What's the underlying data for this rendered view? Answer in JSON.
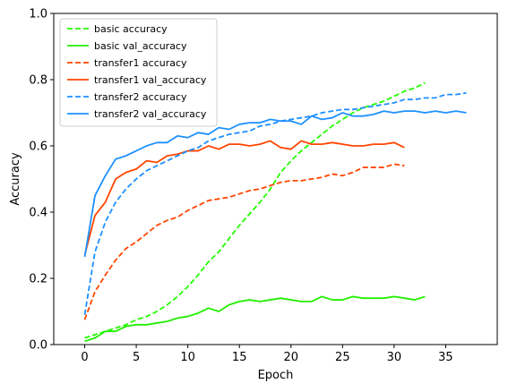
{
  "chart_data": {
    "type": "line",
    "title": "",
    "xlabel": "Epoch",
    "ylabel": "Accuracy",
    "xlim": [
      -3,
      40
    ],
    "ylim": [
      0.0,
      1.0
    ],
    "xticks": [
      0,
      5,
      10,
      15,
      20,
      25,
      30,
      35
    ],
    "xtick_labels": [
      "0",
      "5",
      "10",
      "15",
      "20",
      "25",
      "30",
      "35"
    ],
    "yticks": [
      0.0,
      0.2,
      0.4,
      0.6,
      0.8,
      1.0
    ],
    "ytick_labels": [
      "0.0",
      "0.2",
      "0.4",
      "0.6",
      "0.8",
      "1.0"
    ],
    "legend_position": "top-left",
    "series": [
      {
        "name": "basic accuracy",
        "color": "#22ff00",
        "style": "dashed",
        "x": [
          0,
          1,
          2,
          3,
          4,
          5,
          6,
          7,
          8,
          9,
          10,
          11,
          12,
          13,
          14,
          15,
          16,
          17,
          18,
          19,
          20,
          21,
          22,
          23,
          24,
          25,
          26,
          27,
          28,
          29,
          30,
          31,
          32,
          33
        ],
        "values": [
          0.02,
          0.03,
          0.04,
          0.05,
          0.06,
          0.075,
          0.085,
          0.1,
          0.12,
          0.145,
          0.175,
          0.21,
          0.25,
          0.28,
          0.32,
          0.36,
          0.395,
          0.43,
          0.47,
          0.52,
          0.555,
          0.585,
          0.61,
          0.635,
          0.66,
          0.68,
          0.7,
          0.715,
          0.725,
          0.735,
          0.75,
          0.765,
          0.775,
          0.79
        ]
      },
      {
        "name": "basic val_accuracy",
        "color": "#22ee00",
        "style": "solid",
        "x": [
          0,
          1,
          2,
          3,
          4,
          5,
          6,
          7,
          8,
          9,
          10,
          11,
          12,
          13,
          14,
          15,
          16,
          17,
          18,
          19,
          20,
          21,
          22,
          23,
          24,
          25,
          26,
          27,
          28,
          29,
          30,
          31,
          32,
          33
        ],
        "values": [
          0.01,
          0.02,
          0.04,
          0.04,
          0.055,
          0.06,
          0.06,
          0.065,
          0.07,
          0.08,
          0.085,
          0.095,
          0.11,
          0.1,
          0.12,
          0.13,
          0.135,
          0.13,
          0.135,
          0.14,
          0.135,
          0.13,
          0.13,
          0.145,
          0.135,
          0.135,
          0.145,
          0.14,
          0.14,
          0.14,
          0.145,
          0.14,
          0.135,
          0.145
        ]
      },
      {
        "name": "transfer1 accuracy",
        "color": "#ff4500",
        "style": "dashed",
        "x": [
          0,
          1,
          2,
          3,
          4,
          5,
          6,
          7,
          8,
          9,
          10,
          11,
          12,
          13,
          14,
          15,
          16,
          17,
          18,
          19,
          20,
          21,
          22,
          23,
          24,
          25,
          26,
          27,
          28,
          29,
          30,
          31
        ],
        "values": [
          0.075,
          0.16,
          0.21,
          0.255,
          0.29,
          0.31,
          0.335,
          0.36,
          0.375,
          0.385,
          0.405,
          0.42,
          0.435,
          0.44,
          0.445,
          0.455,
          0.465,
          0.47,
          0.48,
          0.49,
          0.495,
          0.495,
          0.5,
          0.505,
          0.515,
          0.51,
          0.52,
          0.535,
          0.535,
          0.535,
          0.545,
          0.54
        ]
      },
      {
        "name": "transfer1 val_accuracy",
        "color": "#ff4500",
        "style": "solid",
        "x": [
          0,
          1,
          2,
          3,
          4,
          5,
          6,
          7,
          8,
          9,
          10,
          11,
          12,
          13,
          14,
          15,
          16,
          17,
          18,
          19,
          20,
          21,
          22,
          23,
          24,
          25,
          26,
          27,
          28,
          29,
          30,
          31
        ],
        "values": [
          0.27,
          0.39,
          0.43,
          0.5,
          0.52,
          0.53,
          0.555,
          0.55,
          0.57,
          0.575,
          0.585,
          0.585,
          0.6,
          0.59,
          0.605,
          0.605,
          0.6,
          0.605,
          0.615,
          0.595,
          0.59,
          0.615,
          0.605,
          0.605,
          0.61,
          0.605,
          0.6,
          0.6,
          0.605,
          0.605,
          0.61,
          0.595
        ]
      },
      {
        "name": "transfer2 accuracy",
        "color": "#1e90ff",
        "style": "dashed",
        "x": [
          0,
          1,
          2,
          3,
          4,
          5,
          6,
          7,
          8,
          9,
          10,
          11,
          12,
          13,
          14,
          15,
          16,
          17,
          18,
          19,
          20,
          21,
          22,
          23,
          24,
          25,
          26,
          27,
          28,
          29,
          30,
          31,
          32,
          33,
          34,
          35,
          36,
          37
        ],
        "values": [
          0.09,
          0.28,
          0.37,
          0.43,
          0.47,
          0.5,
          0.525,
          0.54,
          0.555,
          0.57,
          0.585,
          0.595,
          0.615,
          0.625,
          0.635,
          0.64,
          0.645,
          0.66,
          0.665,
          0.675,
          0.68,
          0.685,
          0.69,
          0.7,
          0.705,
          0.71,
          0.71,
          0.715,
          0.72,
          0.725,
          0.73,
          0.74,
          0.74,
          0.745,
          0.745,
          0.755,
          0.755,
          0.76
        ]
      },
      {
        "name": "transfer2 val_accuracy",
        "color": "#1e90ff",
        "style": "solid",
        "x": [
          0,
          1,
          2,
          3,
          4,
          5,
          6,
          7,
          8,
          9,
          10,
          11,
          12,
          13,
          14,
          15,
          16,
          17,
          18,
          19,
          20,
          21,
          22,
          23,
          24,
          25,
          26,
          27,
          28,
          29,
          30,
          31,
          32,
          33,
          34,
          35,
          36,
          37
        ],
        "values": [
          0.265,
          0.45,
          0.51,
          0.56,
          0.57,
          0.585,
          0.6,
          0.61,
          0.61,
          0.63,
          0.625,
          0.64,
          0.635,
          0.655,
          0.65,
          0.665,
          0.67,
          0.67,
          0.68,
          0.675,
          0.675,
          0.665,
          0.69,
          0.68,
          0.685,
          0.7,
          0.69,
          0.69,
          0.695,
          0.705,
          0.7,
          0.705,
          0.705,
          0.7,
          0.705,
          0.7,
          0.705,
          0.7
        ]
      }
    ]
  }
}
